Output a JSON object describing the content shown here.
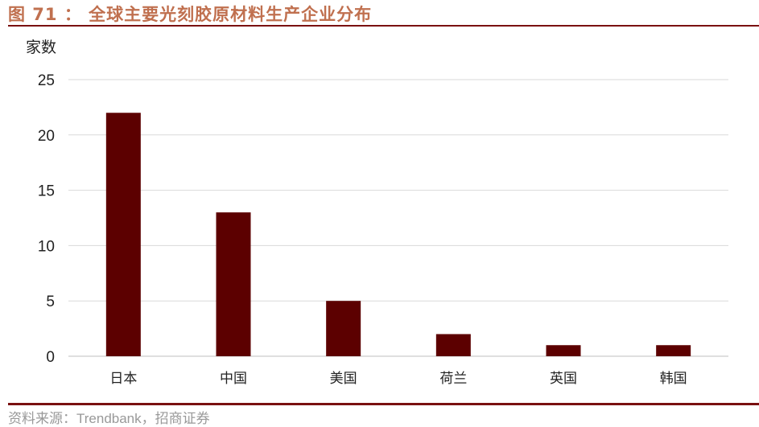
{
  "title": "图 71 ： 全球主要光刻胶原材料生产企业分布",
  "source": "资料来源：Trendbank，招商证券",
  "chart_data": {
    "type": "bar",
    "title": "图 71 ： 全球主要光刻胶原材料生产企业分布",
    "ylabel": "家数",
    "xlabel": "",
    "categories": [
      "日本",
      "中国",
      "美国",
      "荷兰",
      "英国",
      "韩国"
    ],
    "values": [
      22,
      13,
      5,
      2,
      1,
      1
    ],
    "ylim": [
      0,
      25
    ],
    "yticks": [
      0,
      5,
      10,
      15,
      20,
      25
    ],
    "grid": true,
    "bar_color": "#5c0000",
    "grid_color": "#d9d9d9"
  }
}
